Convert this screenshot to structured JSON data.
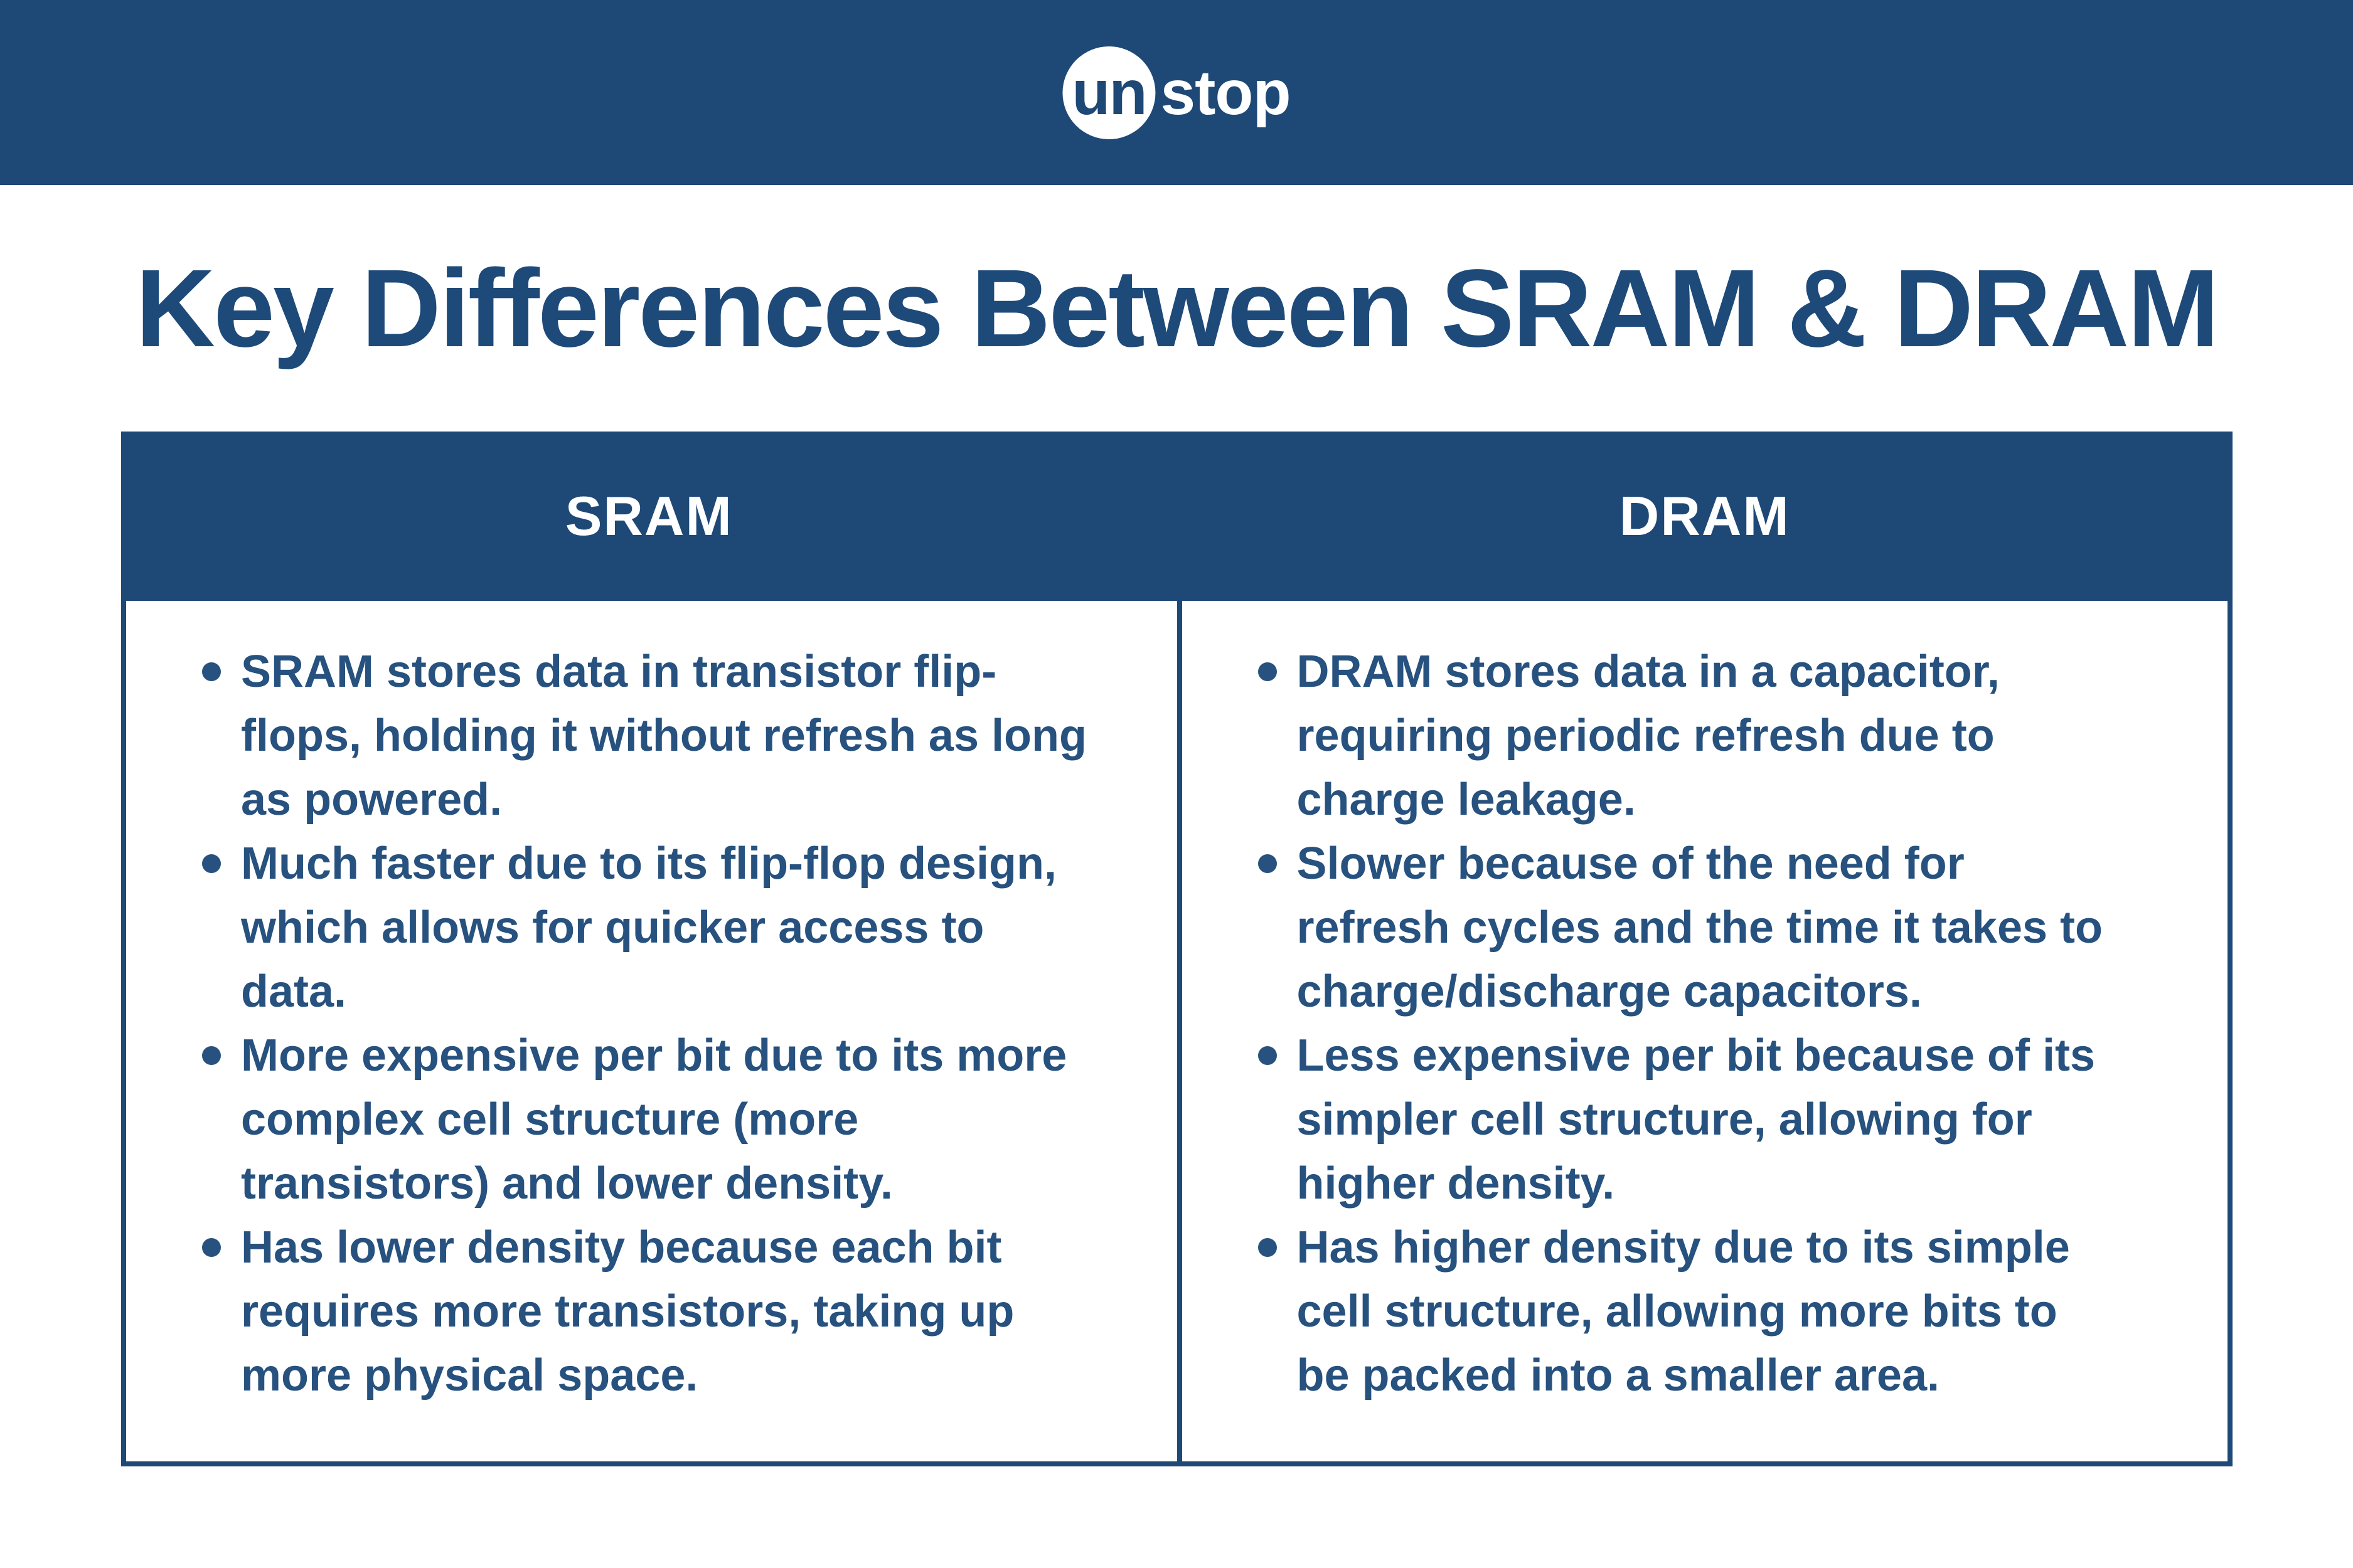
{
  "brand": {
    "logo_un": "un",
    "logo_stop": "stop"
  },
  "title": "Key Differences Between SRAM & DRAM",
  "table": {
    "columns": [
      {
        "header": "SRAM",
        "bullets": [
          "SRAM stores data in transistor flip-flops, holding it without refresh as long as powered.",
          "Much faster due to its flip-flop design, which allows for quicker access to data.",
          "More expensive per bit due to its more complex cell structure (more transistors) and lower density.",
          "Has lower density because each bit requires more transistors, taking up more physical space."
        ]
      },
      {
        "header": "DRAM",
        "bullets": [
          "DRAM stores data in a capacitor, requiring periodic refresh due to charge leakage.",
          "Slower because of the need for refresh cycles and the time it takes to charge/discharge capacitors.",
          "Less expensive per bit because of its simpler cell structure, allowing for higher density.",
          "Has higher density due to its simple cell structure, allowing more bits to be packed into a smaller area."
        ]
      }
    ]
  },
  "colors": {
    "banner_blue": "#1e4876",
    "header_blue": "#1e4876",
    "text_blue": "#27517e",
    "title_blue": "#1e4a79",
    "background": "#ffffff"
  }
}
